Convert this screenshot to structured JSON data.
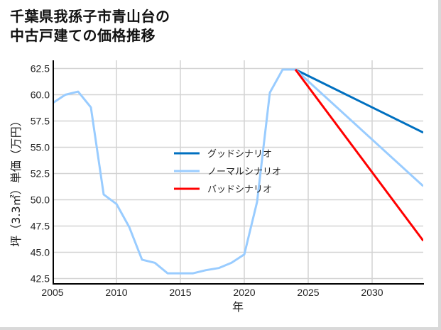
{
  "title": {
    "line1": "千葉県我孫子市青山台の",
    "line2": "中古戸建ての価格推移"
  },
  "chart_data": {
    "type": "line",
    "title": "千葉県我孫子市青山台の中古戸建ての価格推移",
    "xlabel": "年",
    "ylabel": "坪（3.3㎡）単価（万円）",
    "xlim": [
      2005,
      2034
    ],
    "ylim": [
      42,
      63
    ],
    "x_ticks": [
      2005,
      2010,
      2015,
      2020,
      2025,
      2030
    ],
    "y_ticks": [
      42.5,
      45.0,
      47.5,
      50.0,
      52.5,
      55.0,
      57.5,
      60.0,
      62.5
    ],
    "grid": true,
    "legend_position": "center",
    "series": [
      {
        "name": "ノーマルシナリオ",
        "color": "#99ccff",
        "x": [
          2005,
          2006,
          2007,
          2008,
          2009,
          2010,
          2011,
          2012,
          2013,
          2014,
          2015,
          2016,
          2017,
          2018,
          2019,
          2020,
          2021,
          2022,
          2023,
          2024,
          2034
        ],
        "values": [
          59.2,
          60.0,
          60.3,
          58.8,
          50.5,
          49.6,
          47.4,
          44.3,
          44.0,
          43.0,
          43.0,
          43.0,
          43.3,
          43.5,
          44.0,
          44.8,
          49.8,
          60.2,
          62.4,
          62.4,
          51.3
        ]
      },
      {
        "name": "グッドシナリオ",
        "color": "#0070c0",
        "x": [
          2024,
          2034
        ],
        "values": [
          62.4,
          56.4
        ]
      },
      {
        "name": "バッドシナリオ",
        "color": "#ff0000",
        "x": [
          2024,
          2034
        ],
        "values": [
          62.4,
          46.1
        ]
      }
    ]
  },
  "legend": {
    "items": [
      {
        "label": "グッドシナリオ",
        "color": "#0070c0"
      },
      {
        "label": "ノーマルシナリオ",
        "color": "#99ccff"
      },
      {
        "label": "バッドシナリオ",
        "color": "#ff0000"
      }
    ]
  },
  "axes": {
    "x_label": "年",
    "y_label": "坪（3.3㎡）単価（万円）",
    "x_tick_labels": [
      "2005",
      "2010",
      "2015",
      "2020",
      "2025",
      "2030"
    ],
    "y_tick_labels": [
      "62.5",
      "60.0",
      "57.5",
      "55.0",
      "52.5",
      "50.0",
      "47.5",
      "45.0",
      "42.5"
    ]
  }
}
